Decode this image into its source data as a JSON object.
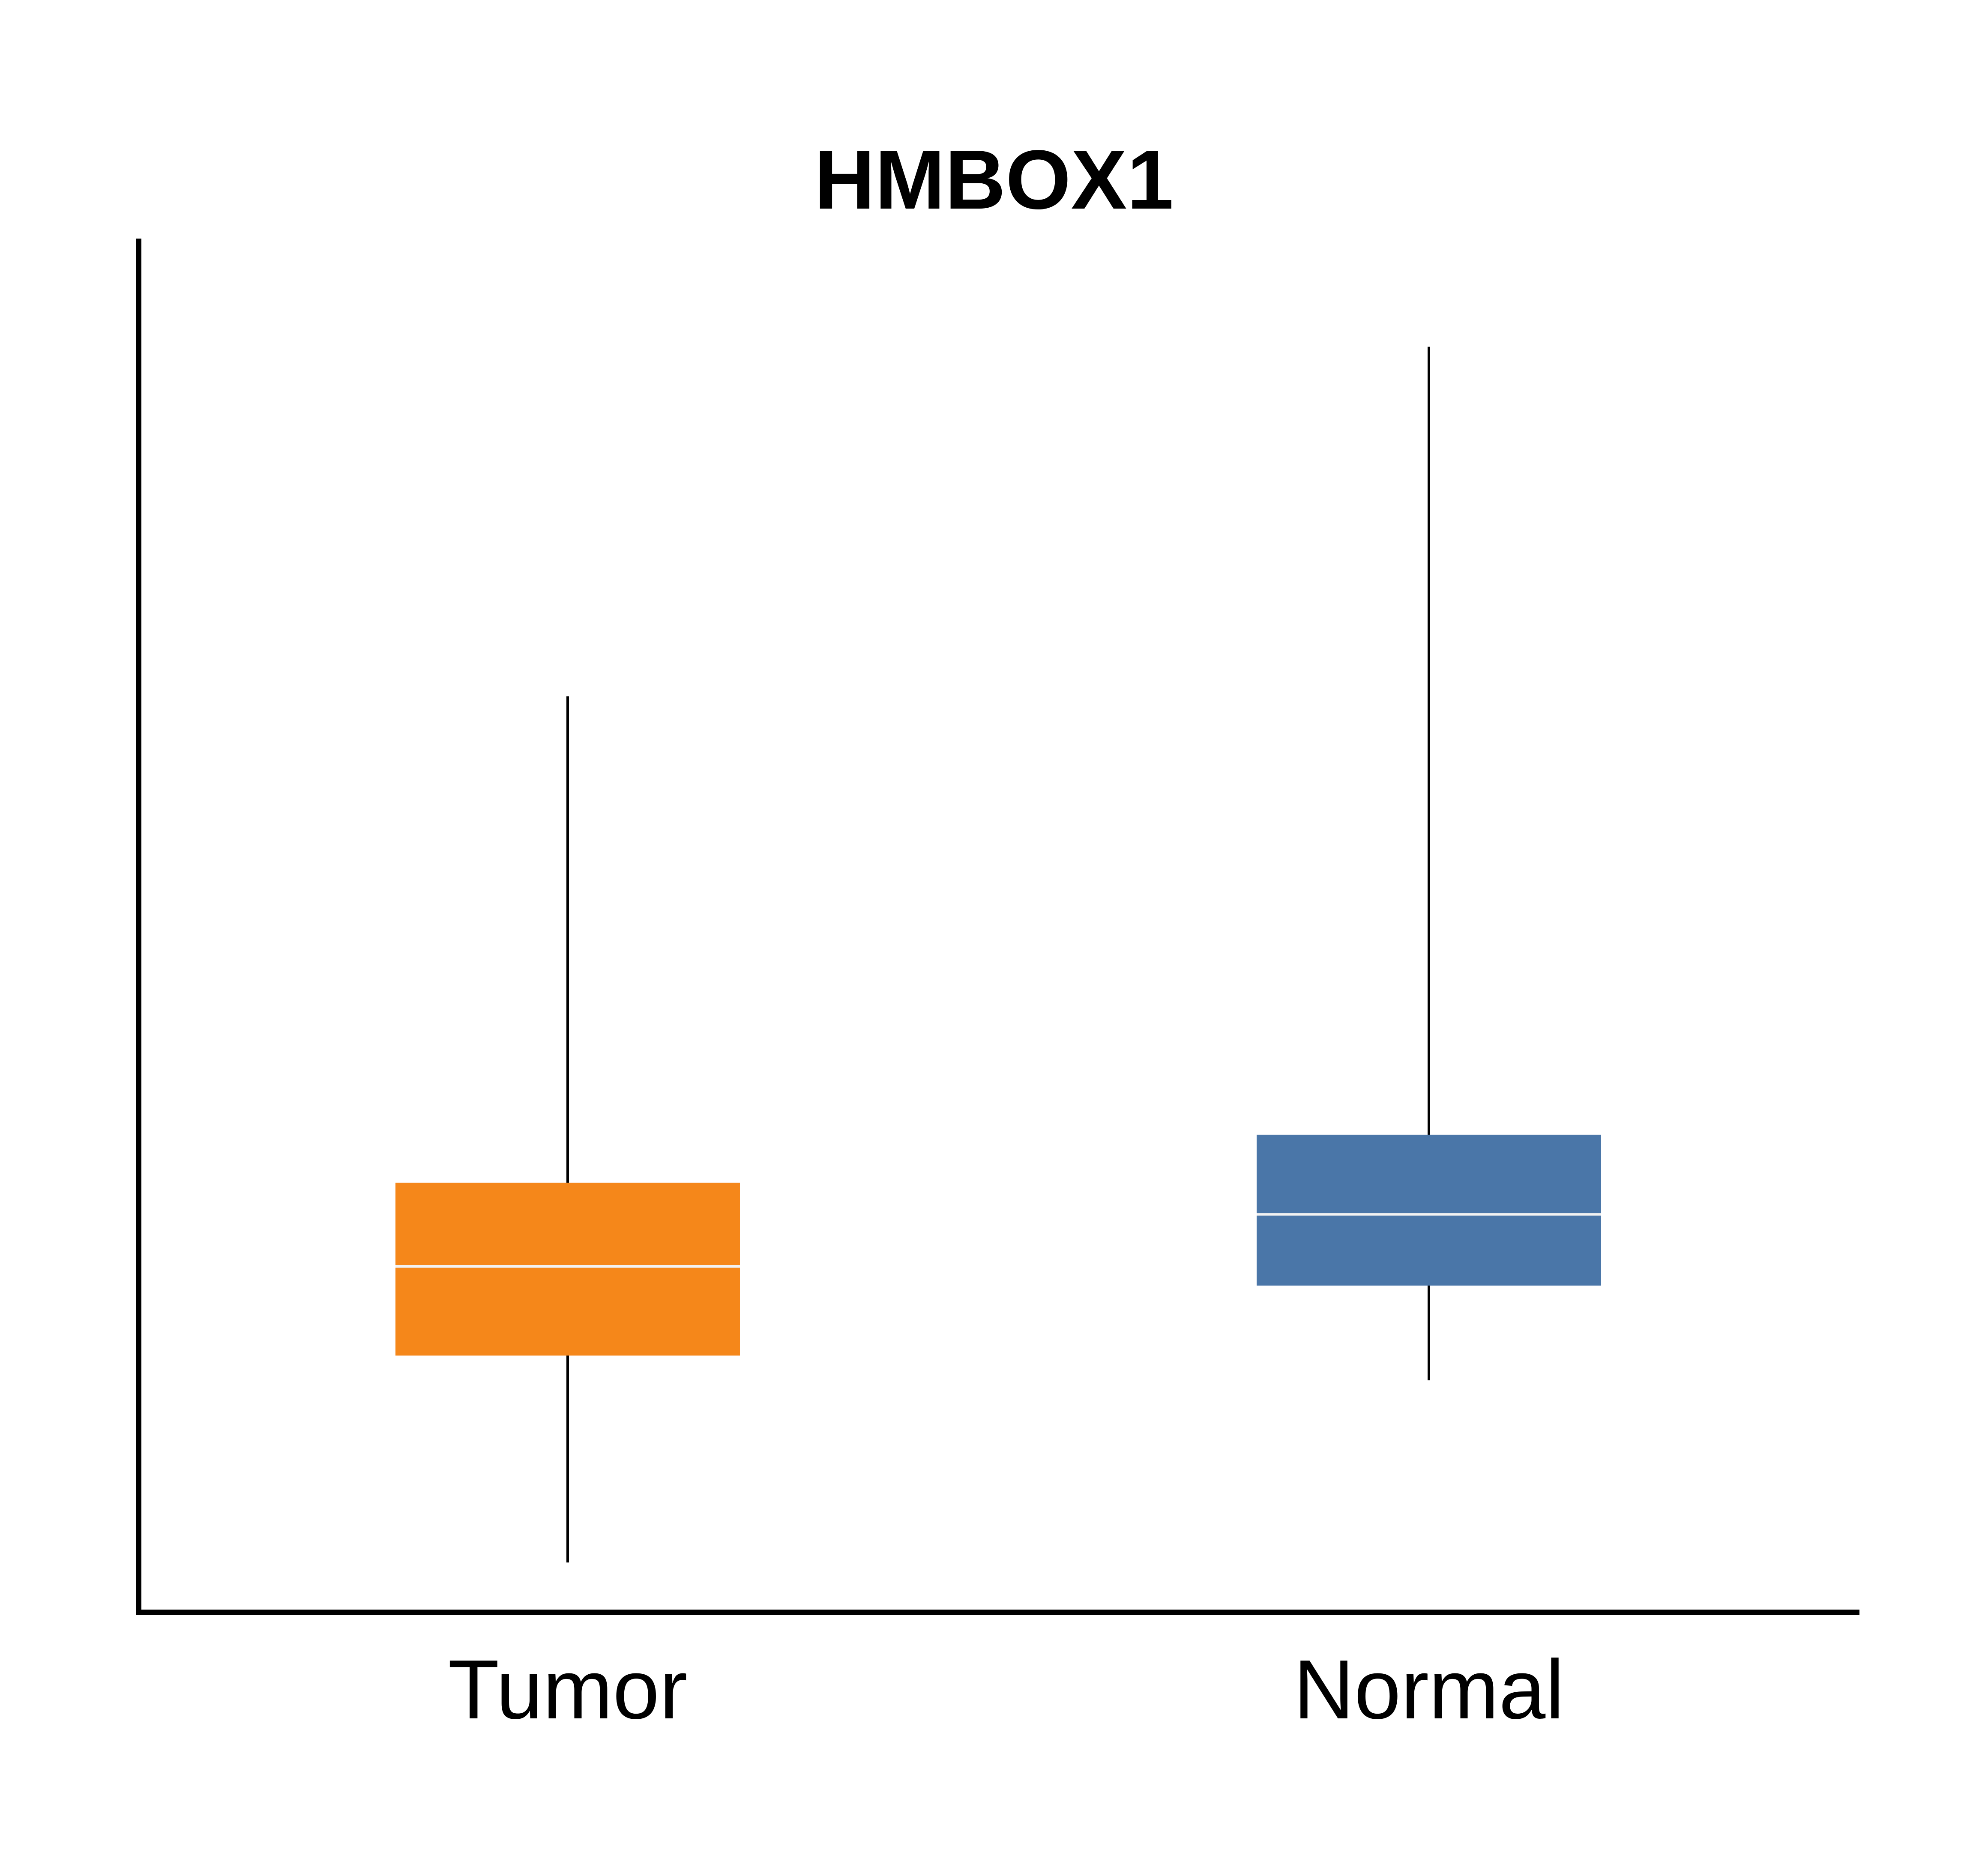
{
  "chart_data": {
    "type": "boxplot",
    "title": "HMBOX1",
    "xlabel": "",
    "ylabel": "",
    "ylim": [
      0,
      100
    ],
    "grid": false,
    "legend": "none",
    "categories": [
      "Tumor",
      "Normal"
    ],
    "boxes": [
      {
        "category": "Tumor",
        "whisker_low": 3.5,
        "q1": 18.6,
        "median": 25.1,
        "q3": 31.2,
        "whisker_high": 66.7,
        "color": "#f5871a"
      },
      {
        "category": "Normal",
        "whisker_low": 16.8,
        "q1": 23.7,
        "median": 28.9,
        "q3": 34.7,
        "whisker_high": 92.2,
        "color": "#4a76a8"
      }
    ]
  },
  "colors": {
    "axis": "#000000",
    "median_line": "#f2f2f2",
    "whisker": "#000000"
  }
}
